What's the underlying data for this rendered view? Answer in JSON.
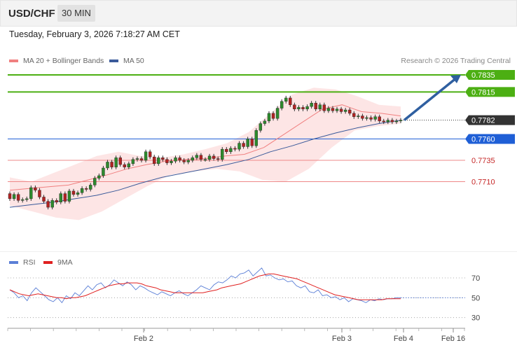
{
  "header": {
    "symbol": "USD/CHF",
    "timeframe": "30 MIN"
  },
  "timestamp": "Tuesday, February 3, 2026 7:18:27 AM CET",
  "legend": {
    "ma20": "MA 20 + Bollinger Bands",
    "ma50": "MA 50",
    "rsi": "RSI",
    "ma9": "9MA"
  },
  "copyright": "Research © 2026 Trading Central",
  "colors": {
    "bull_candle": "#2d8a2d",
    "bear_candle": "#b22222",
    "bollinger_fill": "#fde0e0",
    "ma20": "#f08080",
    "ma50": "#3a5a9a",
    "resistance": "#4caf13",
    "pivot": "#1f5fd6",
    "support": "#ee8888",
    "current": "#333333",
    "arrow": "#2f5fa0",
    "rsi": "#5b7fd6",
    "ma9": "#e02020"
  },
  "chart_data": [
    {
      "type": "candlestick",
      "title": "USD/CHF",
      "x_ticks": [
        "Feb 2",
        "Feb 3",
        "Feb 4",
        "Feb 16"
      ],
      "levels": [
        {
          "value": 0.7835,
          "label": "0.7835",
          "kind": "resistance"
        },
        {
          "value": 0.7815,
          "label": "0.7815",
          "kind": "resistance"
        },
        {
          "value": 0.7782,
          "label": "0.7782",
          "kind": "current"
        },
        {
          "value": 0.776,
          "label": "0.7760",
          "kind": "pivot"
        },
        {
          "value": 0.7735,
          "label": "0.7735",
          "kind": "support"
        },
        {
          "value": 0.771,
          "label": "0.7710",
          "kind": "support"
        }
      ],
      "candles": [
        [
          0.7696,
          0.769
        ],
        [
          0.769,
          0.7695
        ],
        [
          0.7695,
          0.7688
        ],
        [
          0.7688,
          0.7689
        ],
        [
          0.7689,
          0.769
        ],
        [
          0.769,
          0.7703
        ],
        [
          0.7703,
          0.77
        ],
        [
          0.77,
          0.7692
        ],
        [
          0.7692,
          0.7687
        ],
        [
          0.7687,
          0.768
        ],
        [
          0.768,
          0.7688
        ],
        [
          0.7688,
          0.7686
        ],
        [
          0.7686,
          0.7696
        ],
        [
          0.7696,
          0.7687
        ],
        [
          0.7687,
          0.7699
        ],
        [
          0.7699,
          0.7695
        ],
        [
          0.7695,
          0.7697
        ],
        [
          0.7697,
          0.7702
        ],
        [
          0.7702,
          0.7701
        ],
        [
          0.7701,
          0.7706
        ],
        [
          0.7706,
          0.7714
        ],
        [
          0.7714,
          0.7717
        ],
        [
          0.7717,
          0.7726
        ],
        [
          0.7726,
          0.7733
        ],
        [
          0.7733,
          0.7727
        ],
        [
          0.7727,
          0.7738
        ],
        [
          0.7738,
          0.773
        ],
        [
          0.773,
          0.7727
        ],
        [
          0.7727,
          0.7731
        ],
        [
          0.7731,
          0.7736
        ],
        [
          0.7736,
          0.7737
        ],
        [
          0.7737,
          0.7735
        ],
        [
          0.7735,
          0.7745
        ],
        [
          0.7745,
          0.7739
        ],
        [
          0.7739,
          0.7731
        ],
        [
          0.7731,
          0.7738
        ],
        [
          0.7738,
          0.7736
        ],
        [
          0.7736,
          0.7732
        ],
        [
          0.7732,
          0.7734
        ],
        [
          0.7734,
          0.7738
        ],
        [
          0.7738,
          0.7735
        ],
        [
          0.7735,
          0.7733
        ],
        [
          0.7733,
          0.7735
        ],
        [
          0.7735,
          0.7738
        ],
        [
          0.7738,
          0.7741
        ],
        [
          0.7741,
          0.7736
        ],
        [
          0.7736,
          0.7736
        ],
        [
          0.7736,
          0.774
        ],
        [
          0.774,
          0.7737
        ],
        [
          0.7737,
          0.7736
        ],
        [
          0.7736,
          0.7748
        ],
        [
          0.7748,
          0.7745
        ],
        [
          0.7745,
          0.7749
        ],
        [
          0.7749,
          0.7748
        ],
        [
          0.7748,
          0.7755
        ],
        [
          0.7755,
          0.7751
        ],
        [
          0.7751,
          0.776
        ],
        [
          0.776,
          0.7752
        ],
        [
          0.7752,
          0.777
        ],
        [
          0.777,
          0.7778
        ],
        [
          0.7778,
          0.7781
        ],
        [
          0.7781,
          0.779
        ],
        [
          0.779,
          0.7784
        ],
        [
          0.7784,
          0.7796
        ],
        [
          0.7796,
          0.7804
        ],
        [
          0.7804,
          0.7808
        ],
        [
          0.7808,
          0.78
        ],
        [
          0.78,
          0.7795
        ],
        [
          0.7795,
          0.7797
        ],
        [
          0.7797,
          0.7795
        ],
        [
          0.7795,
          0.7798
        ],
        [
          0.7798,
          0.7802
        ],
        [
          0.7802,
          0.7795
        ],
        [
          0.7795,
          0.78
        ],
        [
          0.78,
          0.7793
        ],
        [
          0.7793,
          0.7796
        ],
        [
          0.7796,
          0.7793
        ],
        [
          0.7793,
          0.7795
        ],
        [
          0.7795,
          0.7792
        ],
        [
          0.7792,
          0.7794
        ],
        [
          0.7794,
          0.779
        ],
        [
          0.779,
          0.7786
        ],
        [
          0.7786,
          0.7787
        ],
        [
          0.7787,
          0.7784
        ],
        [
          0.7784,
          0.7785
        ],
        [
          0.7785,
          0.7783
        ],
        [
          0.7783,
          0.7786
        ],
        [
          0.7786,
          0.7781
        ],
        [
          0.7781,
          0.778
        ],
        [
          0.778,
          0.7782
        ],
        [
          0.7782,
          0.778
        ],
        [
          0.778,
          0.7781
        ],
        [
          0.7781,
          0.7782
        ]
      ],
      "ma20": [
        0.77,
        0.7702,
        0.7704,
        0.7706,
        0.7712,
        0.7718,
        0.7725,
        0.773,
        0.7734,
        0.7736,
        0.7737,
        0.774,
        0.7742,
        0.775,
        0.7765,
        0.778,
        0.7795,
        0.78,
        0.7792,
        0.779,
        0.7787
      ],
      "ma50": [
        0.768,
        0.7683,
        0.7686,
        0.769,
        0.7694,
        0.77,
        0.7708,
        0.7715,
        0.772,
        0.7725,
        0.773,
        0.7736,
        0.7745,
        0.7752,
        0.776,
        0.7767,
        0.7773,
        0.7778,
        0.7782
      ],
      "bb_upper": [
        0.7715,
        0.771,
        0.772,
        0.773,
        0.774,
        0.7745,
        0.774,
        0.7738,
        0.7742,
        0.7748,
        0.7755,
        0.7768,
        0.779,
        0.7812,
        0.782,
        0.7818,
        0.781,
        0.78,
        0.7798
      ],
      "bb_lower": [
        0.7682,
        0.7675,
        0.7668,
        0.7665,
        0.7675,
        0.769,
        0.7705,
        0.7718,
        0.7722,
        0.7725,
        0.7722,
        0.7712,
        0.771,
        0.7725,
        0.775,
        0.777,
        0.7775,
        0.7778
      ],
      "forecast_target": 0.7835
    },
    {
      "type": "line",
      "title": "RSI",
      "y_ticks": [
        30,
        50,
        70
      ],
      "ylim": [
        22,
        82
      ],
      "series": [
        {
          "name": "RSI",
          "values": [
            58,
            55,
            50,
            52,
            47,
            55,
            60,
            56,
            52,
            48,
            46,
            50,
            45,
            52,
            49,
            55,
            52,
            57,
            62,
            58,
            63,
            65,
            60,
            63,
            68,
            65,
            62,
            66,
            63,
            58,
            62,
            60,
            57,
            55,
            53,
            56,
            54,
            52,
            55,
            57,
            54,
            52,
            55,
            58,
            62,
            60,
            58,
            63,
            66,
            65,
            68,
            72,
            70,
            74,
            75,
            78,
            72,
            76,
            80,
            72,
            73,
            70,
            68,
            69,
            66,
            67,
            62,
            60,
            62,
            56,
            55,
            58,
            52,
            53,
            50,
            51,
            48,
            50,
            46,
            49,
            48,
            47,
            45,
            48,
            47,
            49,
            48,
            49,
            49,
            50,
            50
          ]
        },
        {
          "name": "9MA",
          "values": [
            58,
            56,
            54,
            53,
            52,
            53,
            54,
            53,
            52,
            51,
            50,
            50,
            49,
            50,
            50,
            51,
            52,
            54,
            56,
            58,
            60,
            62,
            63,
            64,
            64,
            65,
            65,
            65,
            64,
            62,
            61,
            60,
            58,
            57,
            56,
            55,
            55,
            55,
            55,
            55,
            55,
            55,
            56,
            57,
            58,
            60,
            61,
            62,
            63,
            64,
            66,
            68,
            70,
            72,
            73,
            74,
            74,
            73,
            72,
            71,
            70,
            69,
            67,
            65,
            63,
            61,
            59,
            57,
            55,
            53,
            52,
            51,
            50,
            49,
            48,
            48,
            48,
            48,
            48,
            48,
            49,
            49,
            49,
            49
          ]
        }
      ]
    }
  ]
}
